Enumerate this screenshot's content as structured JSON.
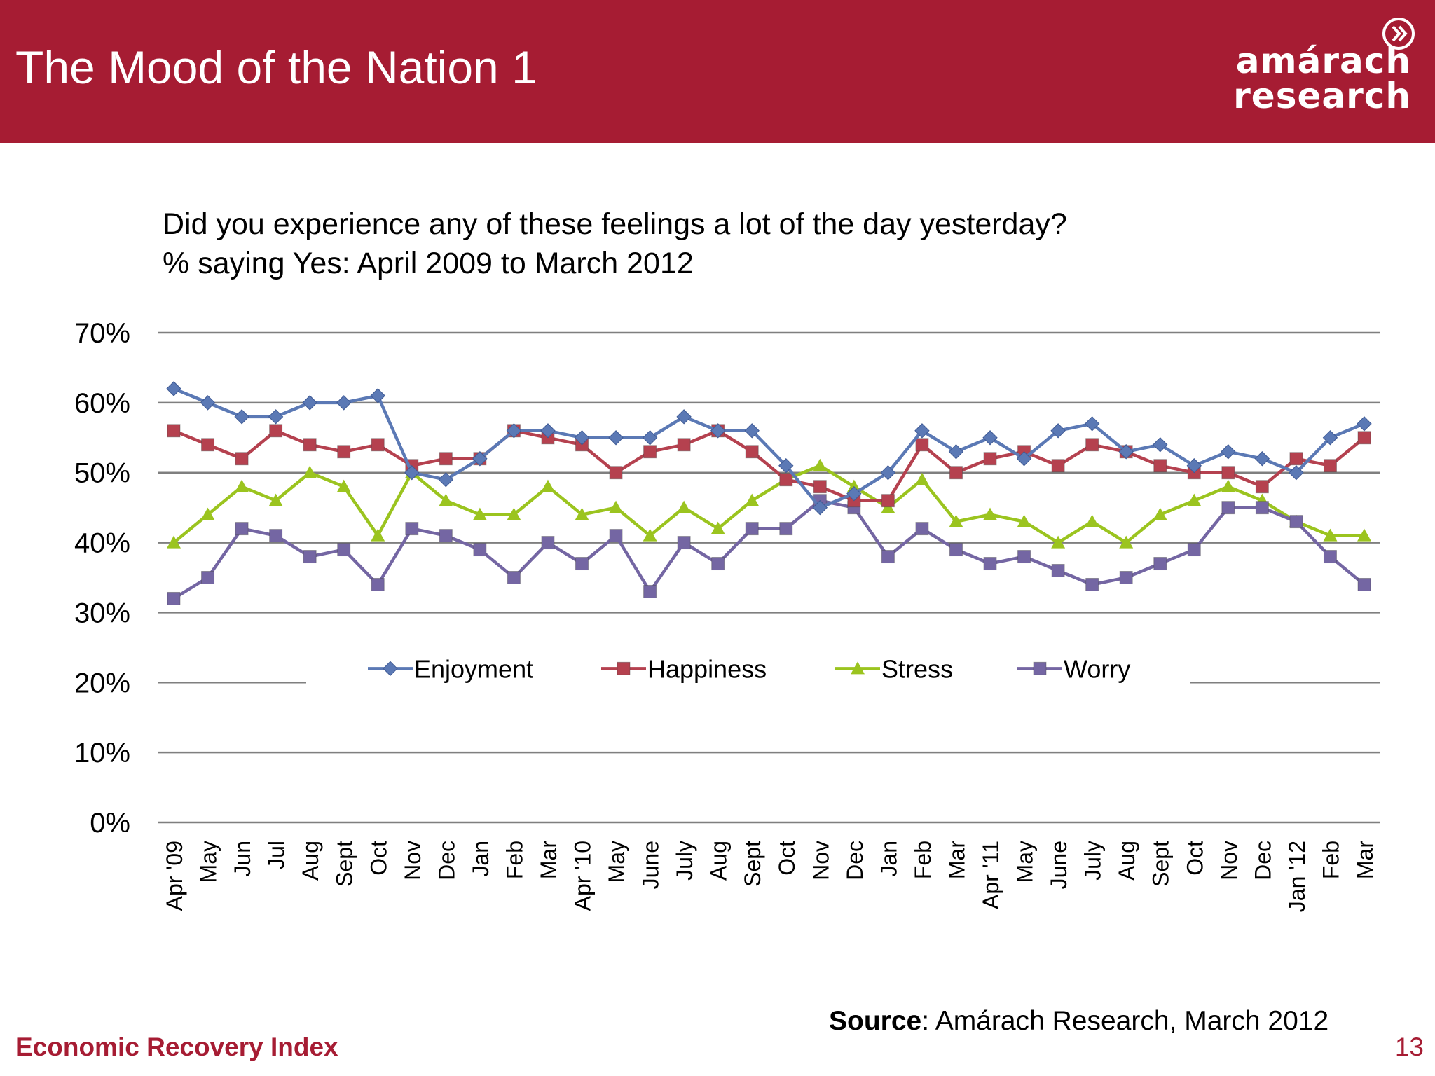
{
  "header": {
    "title": "The Mood of the Nation 1"
  },
  "logo": {
    "line1": "amárach",
    "line2": "research",
    "icon": "double-chevron-right-icon"
  },
  "question": {
    "line1": "Did you experience any of these feelings a lot of the day yesterday?",
    "line2": "% saying Yes: April 2009 to March 2012"
  },
  "chart_data": {
    "type": "line",
    "categories": [
      "Apr '09",
      "May",
      "Jun",
      "Jul",
      "Aug",
      "Sept",
      "Oct",
      "Nov",
      "Dec",
      "Jan",
      "Feb",
      "Mar",
      "Apr '10",
      "May",
      "June",
      "July",
      "Aug",
      "Sept",
      "Oct",
      "Nov",
      "Dec",
      "Jan",
      "Feb",
      "Mar",
      "Apr '11",
      "May",
      "June",
      "July",
      "Aug",
      "Sept",
      "Oct",
      "Nov",
      "Dec",
      "Jan '12",
      "Feb",
      "Mar"
    ],
    "y_ticks": [
      "0%",
      "10%",
      "20%",
      "30%",
      "40%",
      "50%",
      "60%",
      "70%"
    ],
    "ylim": [
      0,
      70
    ],
    "grid": true,
    "legend_position": "middle",
    "series": [
      {
        "name": "Enjoyment",
        "color": "#5b79b5",
        "marker": "diamond",
        "values": [
          62,
          60,
          58,
          58,
          60,
          60,
          61,
          50,
          49,
          52,
          56,
          56,
          55,
          55,
          55,
          58,
          56,
          56,
          51,
          45,
          47,
          50,
          56,
          53,
          55,
          52,
          56,
          57,
          53,
          54,
          51,
          53,
          52,
          50,
          55,
          57
        ]
      },
      {
        "name": "Happiness",
        "color": "#b5414f",
        "marker": "square",
        "values": [
          56,
          54,
          52,
          56,
          54,
          53,
          54,
          51,
          52,
          52,
          56,
          55,
          54,
          50,
          53,
          54,
          56,
          53,
          49,
          48,
          46,
          46,
          54,
          50,
          52,
          53,
          51,
          54,
          53,
          51,
          50,
          50,
          48,
          52,
          51,
          55
        ]
      },
      {
        "name": "Stress",
        "color": "#9bc41f",
        "marker": "triangle",
        "values": [
          40,
          44,
          48,
          46,
          50,
          48,
          41,
          50,
          46,
          44,
          44,
          48,
          44,
          45,
          41,
          45,
          42,
          46,
          49,
          51,
          48,
          45,
          49,
          43,
          44,
          43,
          40,
          43,
          40,
          44,
          46,
          48,
          46,
          43,
          41,
          41
        ]
      },
      {
        "name": "Worry",
        "color": "#7466a3",
        "marker": "square",
        "values": [
          32,
          35,
          42,
          41,
          38,
          39,
          34,
          42,
          41,
          39,
          35,
          40,
          37,
          41,
          33,
          40,
          37,
          42,
          42,
          46,
          45,
          38,
          42,
          39,
          37,
          38,
          36,
          34,
          35,
          37,
          39,
          45,
          45,
          43,
          38,
          34
        ]
      }
    ]
  },
  "source": {
    "bold": "Source",
    "rest": ": Amárach Research, March 2012"
  },
  "footer": {
    "left": "Economic Recovery Index",
    "page": "13"
  }
}
